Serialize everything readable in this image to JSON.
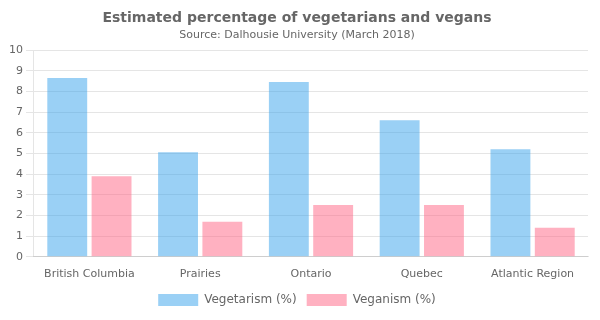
{
  "chart_data": {
    "type": "bar",
    "title": "Estimated percentage of vegetarians and vegans",
    "subtitle": "Source: Dalhousie University (March 2018)",
    "categories": [
      "British Columbia",
      "Prairies",
      "Ontario",
      "Quebec",
      "Atlantic Region"
    ],
    "series": [
      {
        "name": "Vegetarism (%)",
        "values": [
          8.65,
          5.05,
          8.45,
          6.6,
          5.2
        ]
      },
      {
        "name": "Veganism (%)",
        "values": [
          3.9,
          1.7,
          2.5,
          2.5,
          1.4
        ]
      }
    ],
    "ylim": [
      0,
      10
    ],
    "yticks": [
      0,
      1,
      2,
      3,
      4,
      5,
      6,
      7,
      8,
      9,
      10
    ],
    "grid": true,
    "legend": "bottom"
  }
}
